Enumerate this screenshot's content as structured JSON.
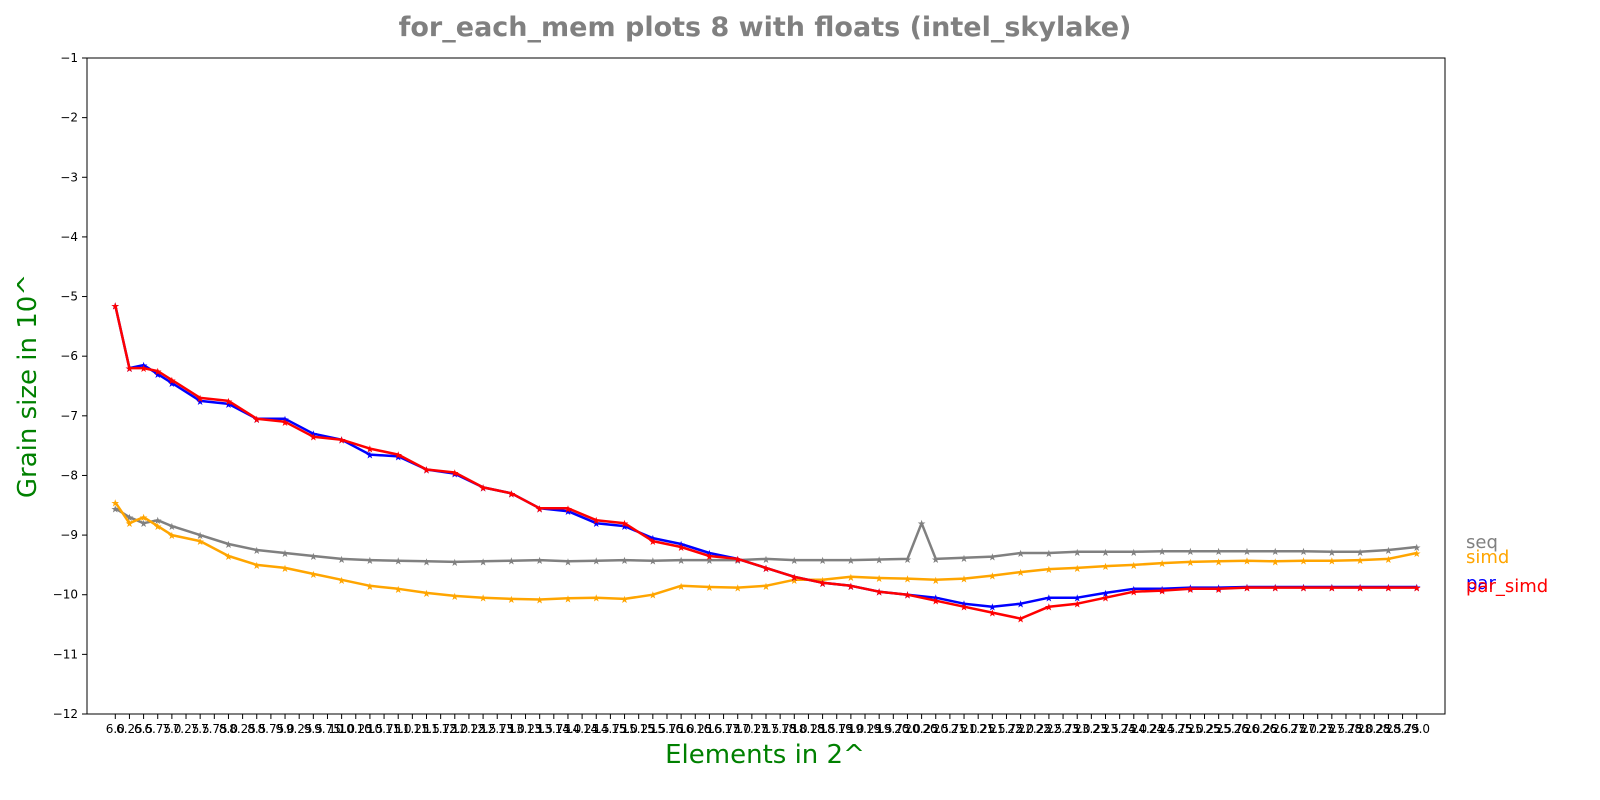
{
  "chart_data": {
    "type": "line",
    "title": "for_each_mem plots 8 with floats  (intel_skylake)",
    "xlabel": "Elements in 2^",
    "ylabel": "Grain size in 10^",
    "ylim": [
      -12,
      -1
    ],
    "yticks": [
      "-1",
      "-2",
      "-3",
      "-4",
      "-5",
      "-6",
      "-7",
      "-8",
      "-9",
      "-10",
      "-11",
      "-12"
    ],
    "xlim": [
      5.5,
      29.5
    ],
    "x_tick_start": 6,
    "x_tick_end": 29,
    "x_tick_step": 0.25,
    "grid": false,
    "legend_placement": "right",
    "colors": {
      "title": "#808080",
      "axis_label": "#008000",
      "seq": "#808080",
      "simd": "#ffa500",
      "par": "#0000ff",
      "par_simd": "#ff0000"
    },
    "series": [
      {
        "name": "seq",
        "color": "#808080",
        "x": [
          6,
          6.25,
          6.5,
          6.75,
          7,
          7.5,
          8,
          8.5,
          9,
          9.5,
          10,
          10.5,
          11,
          11.5,
          12,
          12.5,
          13,
          13.5,
          14,
          14.5,
          15,
          15.5,
          16,
          16.5,
          17,
          17.5,
          18,
          18.5,
          19,
          19.5,
          20,
          20.25,
          20.5,
          21,
          21.5,
          22,
          22.5,
          23,
          23.5,
          24,
          24.5,
          25,
          25.5,
          26,
          26.5,
          27,
          27.5,
          28,
          28.5,
          29
        ],
        "y": [
          -8.55,
          -8.7,
          -8.8,
          -8.75,
          -8.85,
          -9.0,
          -9.15,
          -9.25,
          -9.3,
          -9.35,
          -9.4,
          -9.42,
          -9.43,
          -9.44,
          -9.45,
          -9.44,
          -9.43,
          -9.42,
          -9.44,
          -9.43,
          -9.42,
          -9.43,
          -9.42,
          -9.42,
          -9.42,
          -9.4,
          -9.42,
          -9.42,
          -9.42,
          -9.41,
          -9.4,
          -8.8,
          -9.4,
          -9.38,
          -9.36,
          -9.3,
          -9.3,
          -9.28,
          -9.28,
          -9.28,
          -9.27,
          -9.27,
          -9.27,
          -9.27,
          -9.27,
          -9.27,
          -9.28,
          -9.28,
          -9.25,
          -9.2
        ]
      },
      {
        "name": "simd",
        "color": "#ffa500",
        "x": [
          6,
          6.25,
          6.5,
          6.75,
          7,
          7.5,
          8,
          8.5,
          9,
          9.5,
          10,
          10.5,
          11,
          11.5,
          12,
          12.5,
          13,
          13.5,
          14,
          14.5,
          15,
          15.5,
          16,
          16.5,
          17,
          17.5,
          18,
          18.5,
          19,
          19.5,
          20,
          20.5,
          21,
          21.5,
          22,
          22.5,
          23,
          23.5,
          24,
          24.5,
          25,
          25.5,
          26,
          26.5,
          27,
          27.5,
          28,
          28.5,
          29
        ],
        "y": [
          -8.45,
          -8.8,
          -8.7,
          -8.85,
          -9.0,
          -9.1,
          -9.35,
          -9.5,
          -9.55,
          -9.65,
          -9.75,
          -9.85,
          -9.9,
          -9.97,
          -10.02,
          -10.05,
          -10.07,
          -10.08,
          -10.06,
          -10.05,
          -10.07,
          -10.0,
          -9.85,
          -9.87,
          -9.88,
          -9.85,
          -9.75,
          -9.75,
          -9.7,
          -9.72,
          -9.73,
          -9.75,
          -9.73,
          -9.68,
          -9.62,
          -9.57,
          -9.55,
          -9.52,
          -9.5,
          -9.47,
          -9.45,
          -9.44,
          -9.43,
          -9.44,
          -9.43,
          -9.43,
          -9.42,
          -9.4,
          -9.3
        ]
      },
      {
        "name": "par",
        "color": "#0000ff",
        "x": [
          6,
          6.25,
          6.5,
          6.75,
          7,
          7.5,
          8,
          8.5,
          9,
          9.5,
          10,
          10.5,
          11,
          11.5,
          12,
          12.5,
          13,
          13.5,
          14,
          14.5,
          15,
          15.5,
          16,
          16.5,
          17,
          17.5,
          18,
          18.5,
          19,
          19.5,
          20,
          20.5,
          21,
          21.5,
          22,
          22.5,
          23,
          23.5,
          24,
          24.5,
          25,
          25.5,
          26,
          26.5,
          27,
          27.5,
          28,
          28.5,
          29
        ],
        "y": [
          -5.15,
          -6.2,
          -6.15,
          -6.3,
          -6.45,
          -6.75,
          -6.8,
          -7.05,
          -7.05,
          -7.3,
          -7.4,
          -7.65,
          -7.68,
          -7.9,
          -7.97,
          -8.2,
          -8.3,
          -8.55,
          -8.6,
          -8.8,
          -8.85,
          -9.05,
          -9.15,
          -9.3,
          -9.4,
          -9.55,
          -9.7,
          -9.8,
          -9.85,
          -9.95,
          -10.0,
          -10.05,
          -10.15,
          -10.2,
          -10.15,
          -10.05,
          -10.05,
          -9.97,
          -9.9,
          -9.9,
          -9.88,
          -9.88,
          -9.87,
          -9.87,
          -9.87,
          -9.87,
          -9.87,
          -9.87,
          -9.87
        ]
      },
      {
        "name": "par_simd",
        "color": "#ff0000",
        "x": [
          6,
          6.25,
          6.5,
          6.75,
          7,
          7.5,
          8,
          8.5,
          9,
          9.5,
          10,
          10.5,
          11,
          11.5,
          12,
          12.5,
          13,
          13.5,
          14,
          14.5,
          15,
          15.5,
          16,
          16.5,
          17,
          17.5,
          18,
          18.5,
          19,
          19.5,
          20,
          20.5,
          21,
          21.5,
          22,
          22.5,
          23,
          23.5,
          24,
          24.5,
          25,
          25.5,
          26,
          26.5,
          27,
          27.5,
          28,
          28.5,
          29
        ],
        "y": [
          -5.15,
          -6.2,
          -6.2,
          -6.25,
          -6.4,
          -6.7,
          -6.75,
          -7.05,
          -7.1,
          -7.35,
          -7.4,
          -7.55,
          -7.65,
          -7.9,
          -7.95,
          -8.2,
          -8.3,
          -8.55,
          -8.55,
          -8.75,
          -8.8,
          -9.1,
          -9.2,
          -9.35,
          -9.4,
          -9.55,
          -9.7,
          -9.8,
          -9.85,
          -9.95,
          -10.0,
          -10.1,
          -10.2,
          -10.3,
          -10.4,
          -10.2,
          -10.15,
          -10.05,
          -9.95,
          -9.93,
          -9.9,
          -9.9,
          -9.88,
          -9.88,
          -9.88,
          -9.88,
          -9.88,
          -9.88,
          -9.88
        ]
      }
    ]
  }
}
